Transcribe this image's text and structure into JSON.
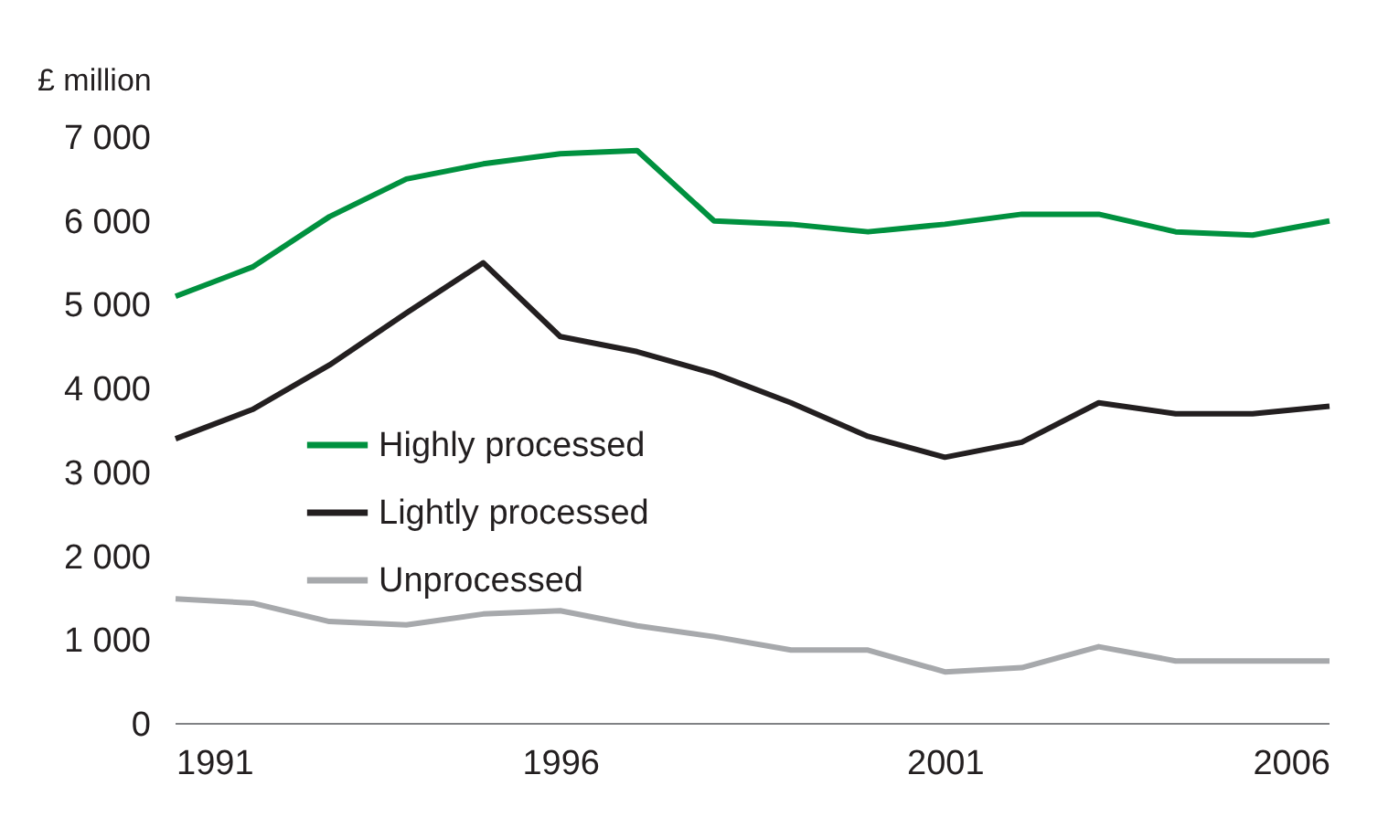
{
  "chart_data": {
    "type": "line",
    "ylabel": "£ million",
    "x": [
      1991,
      1992,
      1993,
      1994,
      1995,
      1996,
      1997,
      1998,
      1999,
      2000,
      2001,
      2002,
      2003,
      2004,
      2005,
      2006
    ],
    "xlim": [
      1991,
      2006
    ],
    "xticks": [
      1991,
      1996,
      2001,
      2006
    ],
    "ylim": [
      0,
      7000
    ],
    "yticks": [
      0,
      {
        "value": 1000,
        "label": "1 000"
      },
      {
        "value": 2000,
        "label": "2 000"
      },
      {
        "value": 3000,
        "label": "3 000"
      },
      {
        "value": 4000,
        "label": "4 000"
      },
      {
        "value": 5000,
        "label": "5 000"
      },
      {
        "value": 6000,
        "label": "6 000"
      },
      {
        "value": 7000,
        "label": "7 000"
      }
    ],
    "grid": false,
    "legend": "middle left",
    "marker": "none",
    "line_style": "solid",
    "series": [
      {
        "name": "Highly processed",
        "color": "#00913f",
        "values": [
          5100,
          5450,
          6050,
          6500,
          6680,
          6800,
          6840,
          6000,
          5960,
          5870,
          5960,
          6080,
          6080,
          5870,
          5830,
          6000
        ]
      },
      {
        "name": "Lightly processed",
        "color": "#231f20",
        "values": [
          3400,
          3750,
          4280,
          4900,
          5500,
          4620,
          4440,
          4180,
          3830,
          3430,
          3180,
          3360,
          3830,
          3700,
          3700,
          3790
        ]
      },
      {
        "name": "Unprocessed",
        "color": "#a7a9ac",
        "values": [
          1490,
          1440,
          1220,
          1180,
          1310,
          1350,
          1170,
          1040,
          880,
          880,
          620,
          670,
          920,
          750,
          750,
          750
        ]
      }
    ]
  }
}
